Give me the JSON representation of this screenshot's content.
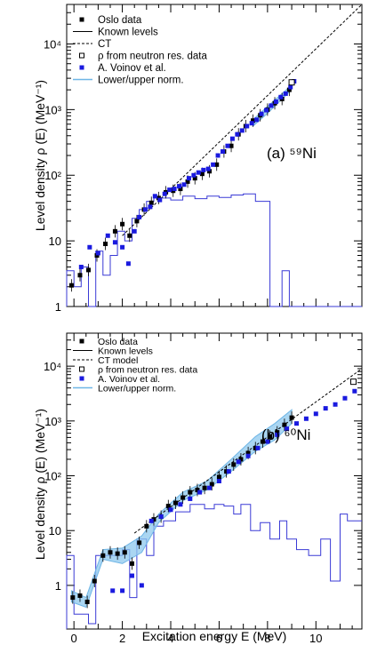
{
  "figure": {
    "xlabel": "Excitation energy E (MeV)",
    "x_ticks": [
      "0",
      "2",
      "4",
      "6",
      "8",
      "10"
    ],
    "y_ticks_panel1": [
      "1",
      "10",
      "10²",
      "10³",
      "10⁴"
    ],
    "y_ticks_panel2": [
      "1",
      "10",
      "10²",
      "10³",
      "10⁴"
    ]
  },
  "chart_data": [
    {
      "type": "scatter",
      "panel_label": "(a) ⁵⁹Ni",
      "ylabel": "Level density ρ (E) (MeV⁻¹)",
      "xlim": [
        -0.3,
        11.9
      ],
      "ylim": [
        1,
        40000
      ],
      "yscale": "log",
      "legend": [
        "Oslo data",
        "Known levels",
        "CT",
        "ρ from neutron res. data",
        "A. Voinov et al.",
        "Lower/upper norm."
      ],
      "colors": {
        "oslo": "#000000",
        "voinov": "#1a1adf",
        "levels": "#3a3ad6",
        "band": "#8ec8ee",
        "ct": "#000000"
      },
      "series": [
        {
          "name": "Oslo data",
          "x": [
            -0.1,
            0.25,
            0.6,
            0.95,
            1.3,
            1.7,
            2.0,
            2.3,
            2.6,
            2.9,
            3.2,
            3.5,
            3.8,
            4.1,
            4.4,
            4.7,
            5.0,
            5.3,
            5.6,
            5.9,
            6.2,
            6.5,
            6.8,
            7.1,
            7.4,
            7.7,
            8.0,
            8.3,
            8.6,
            8.9
          ],
          "y": [
            2.1,
            3.0,
            3.6,
            6.0,
            9.0,
            14,
            18,
            12,
            20,
            30,
            38,
            45,
            55,
            58,
            62,
            80,
            90,
            105,
            115,
            145,
            230,
            280,
            420,
            560,
            680,
            820,
            1000,
            1250,
            1450,
            2000
          ]
        },
        {
          "name": "A. Voinov et al.",
          "x": [
            0.3,
            0.65,
            1.0,
            1.4,
            1.7,
            2.0,
            2.25,
            2.5,
            2.7,
            2.95,
            3.15,
            3.35,
            3.55,
            3.75,
            3.95,
            4.15,
            4.35,
            4.55,
            4.75,
            4.95,
            5.15,
            5.35,
            5.55,
            5.75,
            5.95,
            6.15,
            6.35,
            6.55,
            6.75,
            6.95,
            7.15,
            7.35,
            7.55,
            7.75,
            7.95,
            8.15,
            8.35,
            8.55,
            8.75,
            8.95,
            9.1
          ],
          "y": [
            4.0,
            8.0,
            6.5,
            12,
            9.5,
            8.0,
            4.5,
            14,
            23,
            30,
            33,
            48,
            42,
            52,
            60,
            62,
            68,
            72,
            90,
            100,
            110,
            120,
            125,
            145,
            200,
            230,
            280,
            360,
            420,
            480,
            560,
            620,
            700,
            860,
            980,
            1150,
            1320,
            1550,
            1750,
            2200,
            2700
          ]
        },
        {
          "name": "ρ from neutron res. data",
          "x": [
            9.0
          ],
          "y": [
            2600
          ]
        }
      ]
    },
    {
      "type": "scatter",
      "panel_label": "(b) ⁶⁰Ni",
      "ylabel": "Level density ρ (E) (MeV⁻¹)",
      "xlim": [
        -0.3,
        11.9
      ],
      "ylim": [
        0.16,
        40000
      ],
      "yscale": "log",
      "legend": [
        "Oslo data",
        "Known levels",
        "CT model",
        "ρ from neutron res. data",
        "A. Voinov et al.",
        "Lower/upper norm."
      ],
      "colors": {
        "oslo": "#000000",
        "voinov": "#1a1adf",
        "levels": "#3a3ad6",
        "band": "#8ec8ee",
        "ct": "#000000"
      },
      "series": [
        {
          "name": "Oslo data",
          "x": [
            -0.05,
            0.25,
            0.55,
            0.85,
            1.2,
            1.5,
            1.8,
            2.1,
            2.4,
            2.7,
            3.0,
            3.3,
            3.6,
            3.9,
            4.2,
            4.5,
            4.8,
            5.1,
            5.4,
            5.7,
            6.0,
            6.3,
            6.6,
            6.9,
            7.2,
            7.5,
            7.8,
            8.1,
            8.4,
            8.7,
            9.0
          ],
          "y": [
            0.6,
            0.65,
            0.5,
            1.2,
            3.5,
            4.0,
            3.8,
            4.0,
            2.5,
            6.0,
            12,
            16,
            18,
            28,
            32,
            40,
            50,
            55,
            60,
            70,
            95,
            120,
            160,
            200,
            260,
            320,
            420,
            520,
            620,
            850,
            1150
          ]
        },
        {
          "name": "A. Voinov et al.",
          "x": [
            1.6,
            2.0,
            2.4,
            2.8,
            3.2,
            3.6,
            4.0,
            4.4,
            4.8,
            5.2,
            5.6,
            6.0,
            6.4,
            6.8,
            7.2,
            7.6,
            8.0,
            8.4,
            8.8,
            9.2,
            9.6,
            10.0,
            10.4,
            10.8,
            11.2,
            11.6
          ],
          "y": [
            0.8,
            0.8,
            1.5,
            1.0,
            15,
            18,
            24,
            30,
            38,
            50,
            60,
            80,
            120,
            180,
            230,
            320,
            420,
            560,
            720,
            900,
            1100,
            1350,
            1700,
            2000,
            2600,
            3500
          ]
        },
        {
          "name": "ρ from neutron res. data",
          "x": [
            11.55
          ],
          "y": [
            5200
          ]
        }
      ]
    }
  ]
}
